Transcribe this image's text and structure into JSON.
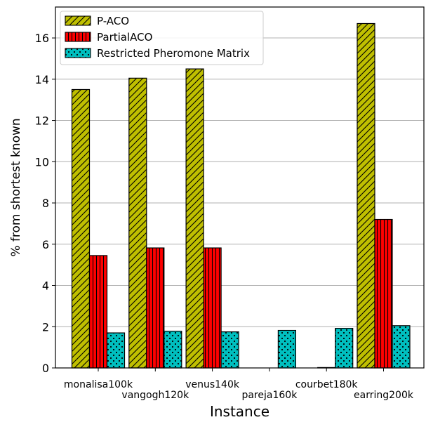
{
  "chart_data": {
    "type": "bar",
    "title": "",
    "xlabel": "Instance",
    "ylabel": "% from shortest known",
    "ylim": [
      0,
      17.5
    ],
    "yticks": [
      0,
      2,
      4,
      6,
      8,
      10,
      12,
      14,
      16
    ],
    "grid": "horizontal",
    "legend_position": "top-left",
    "categories": [
      "monalisa100k",
      "vangogh120k",
      "venus140k",
      "pareja160k",
      "courbet180k",
      "earring200k"
    ],
    "series": [
      {
        "name": "P-ACO",
        "values": [
          13.5,
          14.05,
          14.5,
          null,
          null,
          16.7
        ],
        "color": "#bfbf00",
        "pattern": "diagonal-hatch"
      },
      {
        "name": "PartialACO",
        "values": [
          5.45,
          5.82,
          5.82,
          null,
          0.02,
          7.2
        ],
        "color": "#ff0000",
        "pattern": "vertical-hatch"
      },
      {
        "name": "Restricted Pheromone Matrix",
        "values": [
          1.7,
          1.78,
          1.75,
          1.82,
          1.92,
          2.05
        ],
        "color": "#00bfbf",
        "pattern": "dots"
      }
    ]
  }
}
